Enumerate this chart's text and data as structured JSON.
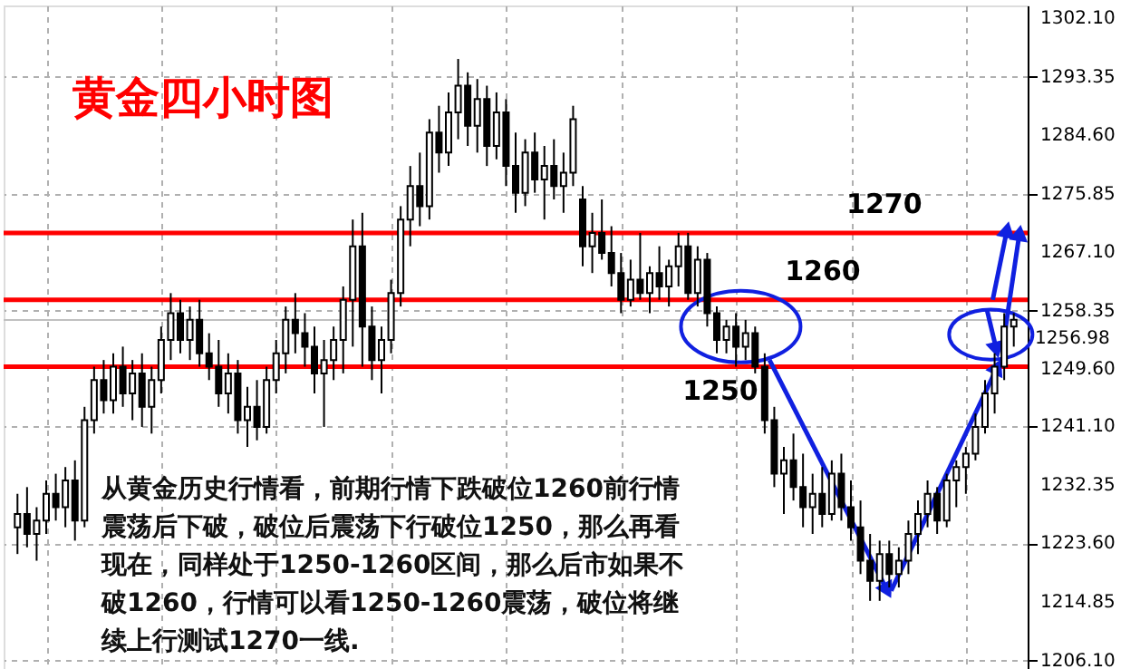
{
  "chart_data": {
    "type": "candlestick",
    "title": "黄金四小时图",
    "categories": [
      null,
      null,
      null,
      null,
      null,
      null,
      null,
      null,
      null,
      null,
      null,
      null,
      null,
      null,
      null,
      null,
      null,
      null,
      null,
      null,
      null,
      null,
      null,
      null,
      null,
      null,
      null,
      null,
      null,
      null,
      null,
      null,
      null,
      null,
      null,
      null,
      null,
      null,
      null,
      null,
      null,
      null,
      null,
      null,
      null,
      null,
      null,
      null,
      null,
      null,
      null,
      null,
      null,
      null,
      null,
      null,
      null,
      null,
      null,
      null,
      null,
      null,
      null,
      null,
      null,
      null,
      null,
      null,
      null,
      null,
      null,
      null,
      null,
      null,
      null,
      null,
      null,
      null,
      null,
      null,
      null,
      null,
      null,
      null,
      null,
      null,
      null,
      null,
      null,
      null,
      null,
      null,
      null,
      null,
      null,
      null,
      null,
      null,
      null,
      null,
      null,
      null,
      null,
      null,
      null
    ],
    "ohlc": [
      [
        1226,
        1231,
        1222,
        1228
      ],
      [
        1228,
        1232,
        1223,
        1225
      ],
      [
        1225,
        1229,
        1221,
        1227
      ],
      [
        1227,
        1233,
        1225,
        1231
      ],
      [
        1231,
        1234,
        1227,
        1229
      ],
      [
        1229,
        1235,
        1226,
        1233
      ],
      [
        1233,
        1236,
        1224,
        1227
      ],
      [
        1227,
        1244,
        1226,
        1242
      ],
      [
        1242,
        1250,
        1240,
        1248
      ],
      [
        1248,
        1251,
        1243,
        1245
      ],
      [
        1245,
        1252,
        1243,
        1250
      ],
      [
        1250,
        1253,
        1244,
        1246
      ],
      [
        1246,
        1251,
        1242,
        1249
      ],
      [
        1249,
        1252,
        1241,
        1244
      ],
      [
        1244,
        1250,
        1240,
        1248
      ],
      [
        1248,
        1256,
        1246,
        1254
      ],
      [
        1254,
        1261,
        1251,
        1258
      ],
      [
        1258,
        1260,
        1252,
        1254
      ],
      [
        1254,
        1259,
        1251,
        1257
      ],
      [
        1257,
        1260,
        1250,
        1252
      ],
      [
        1252,
        1255,
        1248,
        1250
      ],
      [
        1250,
        1254,
        1244,
        1246
      ],
      [
        1246,
        1252,
        1243,
        1249
      ],
      [
        1249,
        1251,
        1240,
        1242
      ],
      [
        1242,
        1247,
        1238,
        1244
      ],
      [
        1244,
        1248,
        1239,
        1241
      ],
      [
        1241,
        1250,
        1240,
        1248
      ],
      [
        1248,
        1254,
        1246,
        1252
      ],
      [
        1252,
        1259,
        1249,
        1257
      ],
      [
        1257,
        1261,
        1252,
        1255
      ],
      [
        1255,
        1258,
        1250,
        1253
      ],
      [
        1253,
        1256,
        1246,
        1249
      ],
      [
        1249,
        1254,
        1241,
        1251
      ],
      [
        1251,
        1256,
        1248,
        1254
      ],
      [
        1254,
        1262,
        1249,
        1260
      ],
      [
        1260,
        1272,
        1253,
        1268
      ],
      [
        1268,
        1273,
        1250,
        1256
      ],
      [
        1256,
        1259,
        1248,
        1251
      ],
      [
        1251,
        1256,
        1246,
        1254
      ],
      [
        1254,
        1263,
        1252,
        1261
      ],
      [
        1261,
        1274,
        1259,
        1272
      ],
      [
        1272,
        1280,
        1268,
        1277
      ],
      [
        1277,
        1282,
        1271,
        1274
      ],
      [
        1274,
        1287,
        1272,
        1285
      ],
      [
        1285,
        1289,
        1279,
        1282
      ],
      [
        1282,
        1291,
        1280,
        1288
      ],
      [
        1288,
        1296,
        1284,
        1292
      ],
      [
        1292,
        1294,
        1283,
        1286
      ],
      [
        1286,
        1293,
        1282,
        1290
      ],
      [
        1290,
        1292,
        1280,
        1283
      ],
      [
        1283,
        1291,
        1281,
        1288
      ],
      [
        1288,
        1290,
        1277,
        1280
      ],
      [
        1280,
        1285,
        1273,
        1276
      ],
      [
        1276,
        1284,
        1274,
        1282
      ],
      [
        1282,
        1285,
        1276,
        1278
      ],
      [
        1278,
        1283,
        1272,
        1280
      ],
      [
        1280,
        1284,
        1275,
        1277
      ],
      [
        1277,
        1282,
        1273,
        1279
      ],
      [
        1279,
        1289,
        1277,
        1287
      ],
      [
        1275,
        1277,
        1265,
        1268
      ],
      [
        1268,
        1273,
        1264,
        1270
      ],
      [
        1270,
        1275,
        1266,
        1267
      ],
      [
        1267,
        1271,
        1262,
        1264
      ],
      [
        1264,
        1267,
        1258,
        1260
      ],
      [
        1260,
        1266,
        1259,
        1263
      ],
      [
        1263,
        1270,
        1260,
        1261
      ],
      [
        1261,
        1265,
        1258,
        1264
      ],
      [
        1264,
        1268,
        1260,
        1262
      ],
      [
        1262,
        1266,
        1259,
        1265
      ],
      [
        1265,
        1270,
        1262,
        1268
      ],
      [
        1268,
        1270,
        1260,
        1261
      ],
      [
        1261,
        1268,
        1259,
        1266
      ],
      [
        1266,
        1267,
        1256,
        1258
      ],
      [
        1258,
        1259,
        1252,
        1254
      ],
      [
        1254,
        1257,
        1252,
        1256
      ],
      [
        1256,
        1258,
        1250,
        1253
      ],
      [
        1253,
        1257,
        1251,
        1255
      ],
      [
        1255,
        1256,
        1249,
        1250
      ],
      [
        1250,
        1252,
        1240,
        1242
      ],
      [
        1242,
        1244,
        1232,
        1234
      ],
      [
        1234,
        1238,
        1228,
        1236
      ],
      [
        1236,
        1240,
        1230,
        1232
      ],
      [
        1232,
        1237,
        1226,
        1229
      ],
      [
        1229,
        1234,
        1225,
        1231
      ],
      [
        1231,
        1235,
        1226,
        1228
      ],
      [
        1228,
        1236,
        1227,
        1234
      ],
      [
        1234,
        1237,
        1227,
        1229
      ],
      [
        1229,
        1233,
        1224,
        1226
      ],
      [
        1226,
        1230,
        1219,
        1221
      ],
      [
        1221,
        1225,
        1215,
        1218
      ],
      [
        1218,
        1224,
        1215,
        1222
      ],
      [
        1222,
        1224,
        1217,
        1219
      ],
      [
        1219,
        1223,
        1217,
        1221
      ],
      [
        1221,
        1227,
        1219,
        1225
      ],
      [
        1225,
        1230,
        1222,
        1228
      ],
      [
        1228,
        1233,
        1226,
        1231
      ],
      [
        1231,
        1232,
        1225,
        1227
      ],
      [
        1227,
        1234,
        1226,
        1233
      ],
      [
        1233,
        1236,
        1229,
        1235
      ],
      [
        1235,
        1238,
        1231,
        1237
      ],
      [
        1237,
        1243,
        1236,
        1241
      ],
      [
        1241,
        1248,
        1240,
        1246
      ],
      [
        1246,
        1252,
        1243,
        1250
      ],
      [
        1250,
        1258,
        1248,
        1256
      ],
      [
        1256,
        1258,
        1253,
        1257
      ]
    ],
    "color": "#000000",
    "ylim": [
      1204,
      1304
    ],
    "yticks": [
      {
        "value": 1302.1,
        "label": "1302.10"
      },
      {
        "value": 1293.35,
        "label": "1293.35"
      },
      {
        "value": 1284.6,
        "label": "1284.60"
      },
      {
        "value": 1275.85,
        "label": "1275.85"
      },
      {
        "value": 1267.1,
        "label": "1267.10"
      },
      {
        "value": 1258.35,
        "label": "1258.35"
      },
      {
        "value": 1249.6,
        "label": "1249.60"
      },
      {
        "value": 1241.1,
        "label": "1241.10"
      },
      {
        "value": 1232.35,
        "label": "1232.35"
      },
      {
        "value": 1223.6,
        "label": "1223.60"
      },
      {
        "value": 1214.85,
        "label": "1214.85"
      },
      {
        "value": 1206.1,
        "label": "1206.10"
      }
    ],
    "tick_labels": "y",
    "grid": true,
    "ref_lines": [
      {
        "axis": "y",
        "value": 1270,
        "label": "1270",
        "color": "#ff0000"
      },
      {
        "axis": "y",
        "value": 1260,
        "label": "1260",
        "color": "#ff0000"
      },
      {
        "axis": "y",
        "value": 1250,
        "label": "1250",
        "color": "#ff0000"
      },
      {
        "axis": "y",
        "value": 1256.98,
        "label": "1256.98",
        "color": "#c0c0c0"
      }
    ],
    "annotations": [
      "从黄金历史行情看，前期行情下跌破位1260前行情震荡后下破，破位后震荡下行破位1250，那么再看现在，同样处于1250-1260区间，那么后市如果不破1260，行情可以看1250-1260震荡，破位将继续上行测试1270一线."
    ]
  }
}
